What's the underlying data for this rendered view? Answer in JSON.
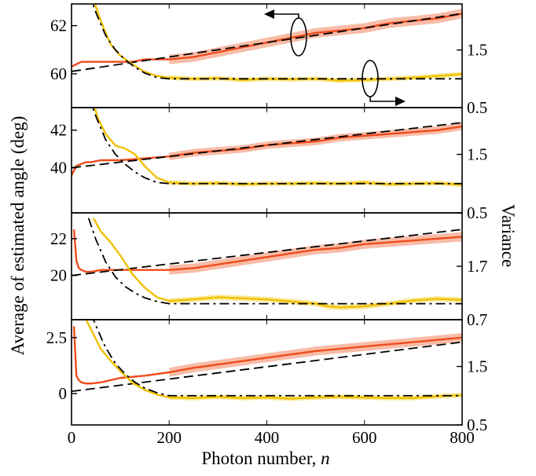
{
  "figure": {
    "ylabel_left": "Average of estimated angle (deg)",
    "ylabel_right": "Variance",
    "xlabel": "Photon number, ",
    "xlabel_italic": "n"
  },
  "chart_data": [
    {
      "type": "line",
      "xlim": [
        0,
        800
      ],
      "xticks": [
        0,
        200,
        400,
        600,
        800
      ],
      "ylim_left": [
        58.6,
        62.9
      ],
      "yticks_left": [
        "60",
        "62"
      ],
      "yticks_left_values": [
        60,
        62
      ],
      "ylim_right": [
        0.5,
        2.3
      ],
      "yticks_right": [
        "0.5",
        "1.5"
      ],
      "yticks_right_values": [
        0.5,
        1.5
      ],
      "grid": false,
      "annotations": [
        "left-arrow ellipse on orange curve (left axis)",
        "right-arrow ellipse on yellow curve (right axis)"
      ],
      "series": [
        {
          "role": "average",
          "axis": "left",
          "color": "#ef4c1c",
          "band_color": "#f5a58a",
          "x": [
            0,
            10,
            20,
            30,
            40,
            60,
            80,
            100,
            125,
            150,
            175,
            200,
            250,
            300,
            350,
            400,
            450,
            500,
            550,
            600,
            650,
            700,
            750,
            800
          ],
          "y": [
            60.3,
            60.4,
            60.5,
            60.5,
            60.5,
            60.5,
            60.5,
            60.5,
            60.5,
            60.6,
            60.6,
            60.6,
            60.7,
            60.9,
            61.1,
            61.3,
            61.5,
            61.7,
            61.8,
            61.9,
            62.1,
            62.2,
            62.3,
            62.5
          ],
          "band": 0.2
        },
        {
          "role": "average-fit",
          "axis": "left",
          "style": "dashed",
          "color": "#000000",
          "x": [
            0,
            800
          ],
          "y": [
            60.1,
            62.5
          ]
        },
        {
          "role": "variance",
          "axis": "right",
          "color": "#f0c000",
          "band_color": "#f8e27a",
          "x": [
            40,
            60,
            80,
            100,
            125,
            150,
            175,
            200,
            250,
            300,
            350,
            400,
            450,
            500,
            550,
            600,
            650,
            700,
            750,
            800
          ],
          "y": [
            2.5,
            2.0,
            1.6,
            1.4,
            1.25,
            1.12,
            1.05,
            1.02,
            1.0,
            1.01,
            0.98,
            1.0,
            0.99,
            1.0,
            0.97,
            0.98,
            1.0,
            1.02,
            1.05,
            1.08
          ],
          "band": 0.04
        },
        {
          "role": "variance-fit",
          "axis": "right",
          "style": "dash-dot",
          "color": "#000000",
          "x": [
            35,
            50,
            70,
            90,
            110,
            130,
            150,
            175,
            200,
            800
          ],
          "y": [
            2.5,
            2.15,
            1.75,
            1.5,
            1.33,
            1.2,
            1.1,
            1.02,
            1.0,
            1.0
          ]
        }
      ]
    },
    {
      "type": "line",
      "xlim": [
        0,
        800
      ],
      "xticks": [
        0,
        200,
        400,
        600,
        800
      ],
      "ylim_left": [
        37.6,
        43.2
      ],
      "yticks_left": [
        "40",
        "42"
      ],
      "yticks_left_values": [
        40,
        42
      ],
      "ylim_right": [
        0.5,
        2.3
      ],
      "yticks_right": [
        "0.5",
        "1.5"
      ],
      "yticks_right_values": [
        0.5,
        1.5
      ],
      "grid": false,
      "series": [
        {
          "role": "average",
          "axis": "left",
          "color": "#ef4c1c",
          "band_color": "#f5a58a",
          "x": [
            0,
            10,
            20,
            30,
            40,
            60,
            80,
            100,
            150,
            200,
            250,
            300,
            350,
            400,
            450,
            500,
            550,
            600,
            650,
            700,
            750,
            800
          ],
          "y": [
            39.6,
            40.1,
            40.2,
            40.3,
            40.3,
            40.4,
            40.4,
            40.4,
            40.5,
            40.6,
            40.8,
            40.9,
            41.0,
            41.2,
            41.3,
            41.4,
            41.6,
            41.7,
            41.8,
            41.9,
            42.0,
            42.2
          ],
          "band": 0.2
        },
        {
          "role": "average-fit",
          "axis": "left",
          "style": "dashed",
          "color": "#000000",
          "x": [
            0,
            800
          ],
          "y": [
            40.0,
            42.4
          ]
        },
        {
          "role": "variance",
          "axis": "right",
          "color": "#f0c000",
          "band_color": "#f8e27a",
          "x": [
            40,
            55,
            70,
            90,
            110,
            130,
            150,
            175,
            200,
            250,
            300,
            350,
            400,
            450,
            500,
            550,
            600,
            650,
            700,
            750,
            800
          ],
          "y": [
            2.5,
            2.1,
            1.85,
            1.65,
            1.6,
            1.5,
            1.3,
            1.1,
            1.02,
            1.0,
            1.01,
            0.99,
            1.0,
            1.0,
            1.01,
            1.0,
            1.02,
            0.99,
            1.0,
            1.01,
            0.98
          ],
          "band": 0.04
        },
        {
          "role": "variance-fit",
          "axis": "right",
          "style": "dash-dot",
          "color": "#000000",
          "x": [
            35,
            50,
            70,
            90,
            110,
            130,
            150,
            175,
            200,
            800
          ],
          "y": [
            2.5,
            2.15,
            1.75,
            1.5,
            1.33,
            1.2,
            1.1,
            1.02,
            1.0,
            1.0
          ]
        }
      ]
    },
    {
      "type": "line",
      "xlim": [
        0,
        800
      ],
      "xticks": [
        0,
        200,
        400,
        600,
        800
      ],
      "ylim_left": [
        17.6,
        23.4
      ],
      "yticks_left": [
        "20",
        "22"
      ],
      "yticks_left_values": [
        20,
        22
      ],
      "ylim_right": [
        0.7,
        2.7
      ],
      "yticks_right": [
        "0.7",
        "1.7"
      ],
      "yticks_right_values": [
        0.7,
        1.7
      ],
      "grid": false,
      "series": [
        {
          "role": "average",
          "axis": "left",
          "color": "#ef4c1c",
          "band_color": "#f5a58a",
          "x": [
            5,
            10,
            15,
            20,
            30,
            40,
            60,
            80,
            100,
            150,
            200,
            250,
            300,
            350,
            400,
            450,
            500,
            550,
            600,
            650,
            700,
            750,
            800
          ],
          "y": [
            22.5,
            20.8,
            20.4,
            20.3,
            20.2,
            20.2,
            20.3,
            20.3,
            20.3,
            20.3,
            20.3,
            20.4,
            20.6,
            20.8,
            21.0,
            21.2,
            21.4,
            21.5,
            21.7,
            21.8,
            21.9,
            22.0,
            22.1
          ],
          "band": 0.25
        },
        {
          "role": "average-fit",
          "axis": "left",
          "style": "dashed",
          "color": "#000000",
          "x": [
            0,
            800
          ],
          "y": [
            20.0,
            22.5
          ]
        },
        {
          "role": "variance",
          "axis": "right",
          "color": "#f0c000",
          "band_color": "#f8e27a",
          "x": [
            45,
            60,
            80,
            100,
            125,
            150,
            175,
            200,
            250,
            300,
            350,
            400,
            450,
            500,
            525,
            550,
            600,
            650,
            700,
            750,
            800
          ],
          "y": [
            2.6,
            2.35,
            2.15,
            1.9,
            1.55,
            1.3,
            1.12,
            1.05,
            1.08,
            1.12,
            1.1,
            1.08,
            1.04,
            1.0,
            0.95,
            0.93,
            0.95,
            1.0,
            1.06,
            1.09,
            1.07
          ],
          "band": 0.05
        },
        {
          "role": "variance-fit",
          "axis": "right",
          "style": "dash-dot",
          "color": "#000000",
          "x": [
            35,
            50,
            70,
            90,
            110,
            130,
            150,
            175,
            200,
            800
          ],
          "y": [
            2.6,
            2.2,
            1.78,
            1.5,
            1.32,
            1.2,
            1.11,
            1.04,
            1.0,
            1.0
          ]
        }
      ]
    },
    {
      "type": "line",
      "xlim": [
        0,
        800
      ],
      "xticks": [
        0,
        200,
        400,
        600,
        800
      ],
      "xticklabels": [
        "0",
        "200",
        "400",
        "600",
        "800"
      ],
      "ylim_left": [
        -1.4,
        3.3
      ],
      "yticks_left": [
        "0",
        "2.5"
      ],
      "yticks_left_values": [
        0,
        2.5
      ],
      "ylim_right": [
        0.5,
        2.3
      ],
      "yticks_right": [
        "0.5",
        "1.5"
      ],
      "yticks_right_values": [
        0.5,
        1.5
      ],
      "grid": false,
      "series": [
        {
          "role": "average",
          "axis": "left",
          "color": "#ef4c1c",
          "band_color": "#f5a58a",
          "x": [
            5,
            10,
            15,
            20,
            30,
            40,
            60,
            80,
            100,
            150,
            200,
            250,
            300,
            350,
            400,
            450,
            500,
            550,
            600,
            650,
            700,
            750,
            800
          ],
          "y": [
            3.0,
            0.8,
            0.6,
            0.5,
            0.45,
            0.45,
            0.5,
            0.6,
            0.7,
            0.8,
            0.95,
            1.15,
            1.3,
            1.45,
            1.6,
            1.75,
            1.9,
            2.0,
            2.1,
            2.2,
            2.3,
            2.4,
            2.5
          ],
          "band": 0.2
        },
        {
          "role": "average-fit",
          "axis": "left",
          "style": "dashed",
          "color": "#000000",
          "x": [
            0,
            800
          ],
          "y": [
            0.1,
            2.3
          ]
        },
        {
          "role": "variance",
          "axis": "right",
          "color": "#f0c000",
          "band_color": "#f8e27a",
          "x": [
            30,
            45,
            60,
            80,
            100,
            125,
            150,
            175,
            200,
            250,
            300,
            350,
            400,
            450,
            500,
            550,
            600,
            650,
            700,
            750,
            800
          ],
          "y": [
            2.3,
            2.05,
            1.8,
            1.6,
            1.42,
            1.22,
            1.1,
            1.02,
            0.97,
            0.96,
            0.98,
            0.96,
            0.97,
            0.95,
            0.97,
            0.98,
            0.97,
            0.96,
            0.96,
            0.99,
            1.01
          ],
          "band": 0.04
        },
        {
          "role": "variance-fit",
          "axis": "right",
          "style": "dash-dot",
          "color": "#000000",
          "x": [
            40,
            55,
            70,
            90,
            110,
            130,
            150,
            175,
            200,
            800
          ],
          "y": [
            2.4,
            2.1,
            1.82,
            1.55,
            1.37,
            1.23,
            1.13,
            1.05,
            1.0,
            1.0
          ]
        }
      ]
    }
  ]
}
